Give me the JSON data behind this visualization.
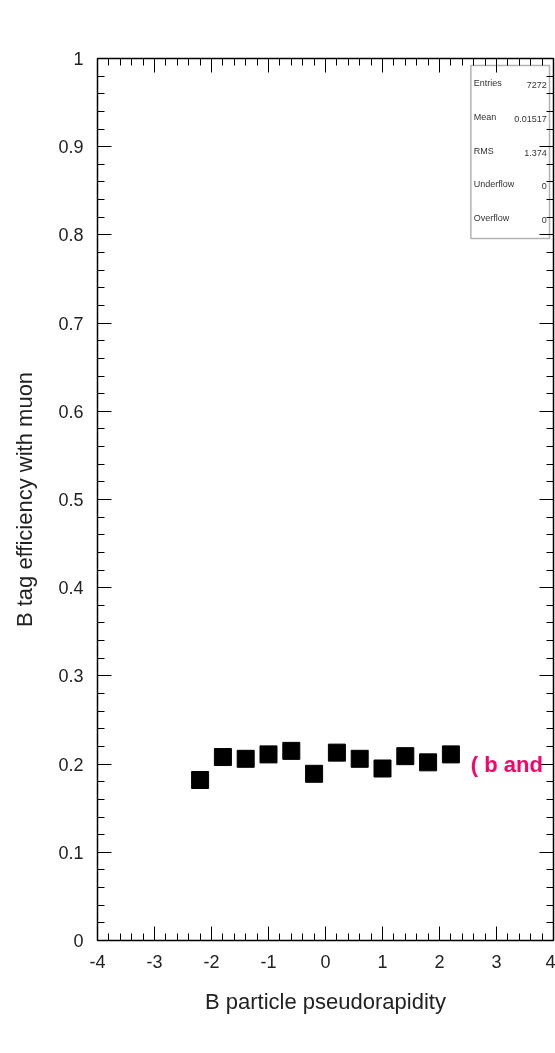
{
  "chart_data": {
    "type": "scatter",
    "xlabel": "B particle pseudorapidity",
    "ylabel": "B tag efficiency with muon",
    "x": [
      -2.2,
      -1.8,
      -1.4,
      -1.0,
      -0.6,
      -0.2,
      0.2,
      0.6,
      1.0,
      1.4,
      1.8,
      2.2
    ],
    "series": [
      {
        "color": "#000000",
        "values": [
          0.182,
          0.208,
          0.206,
          0.211,
          0.215,
          0.189,
          0.213,
          0.206,
          0.195,
          0.209,
          0.202,
          0.211
        ]
      }
    ],
    "xlim": [
      -4,
      4
    ],
    "ylim": [
      0,
      1
    ],
    "xticks": [
      -4,
      -3,
      -2,
      -1,
      0,
      1,
      2,
      3,
      4
    ],
    "yticks": [
      0,
      0.1,
      0.2,
      0.3,
      0.4,
      0.5,
      0.6,
      0.7,
      0.8,
      0.9,
      1
    ],
    "marker": "square",
    "grid": false,
    "annotations": [
      "Entries 7272",
      "Mean 0.01517",
      "RMS 1.374",
      "Underflow 0",
      "Overflow 0",
      "( b and"
    ]
  }
}
